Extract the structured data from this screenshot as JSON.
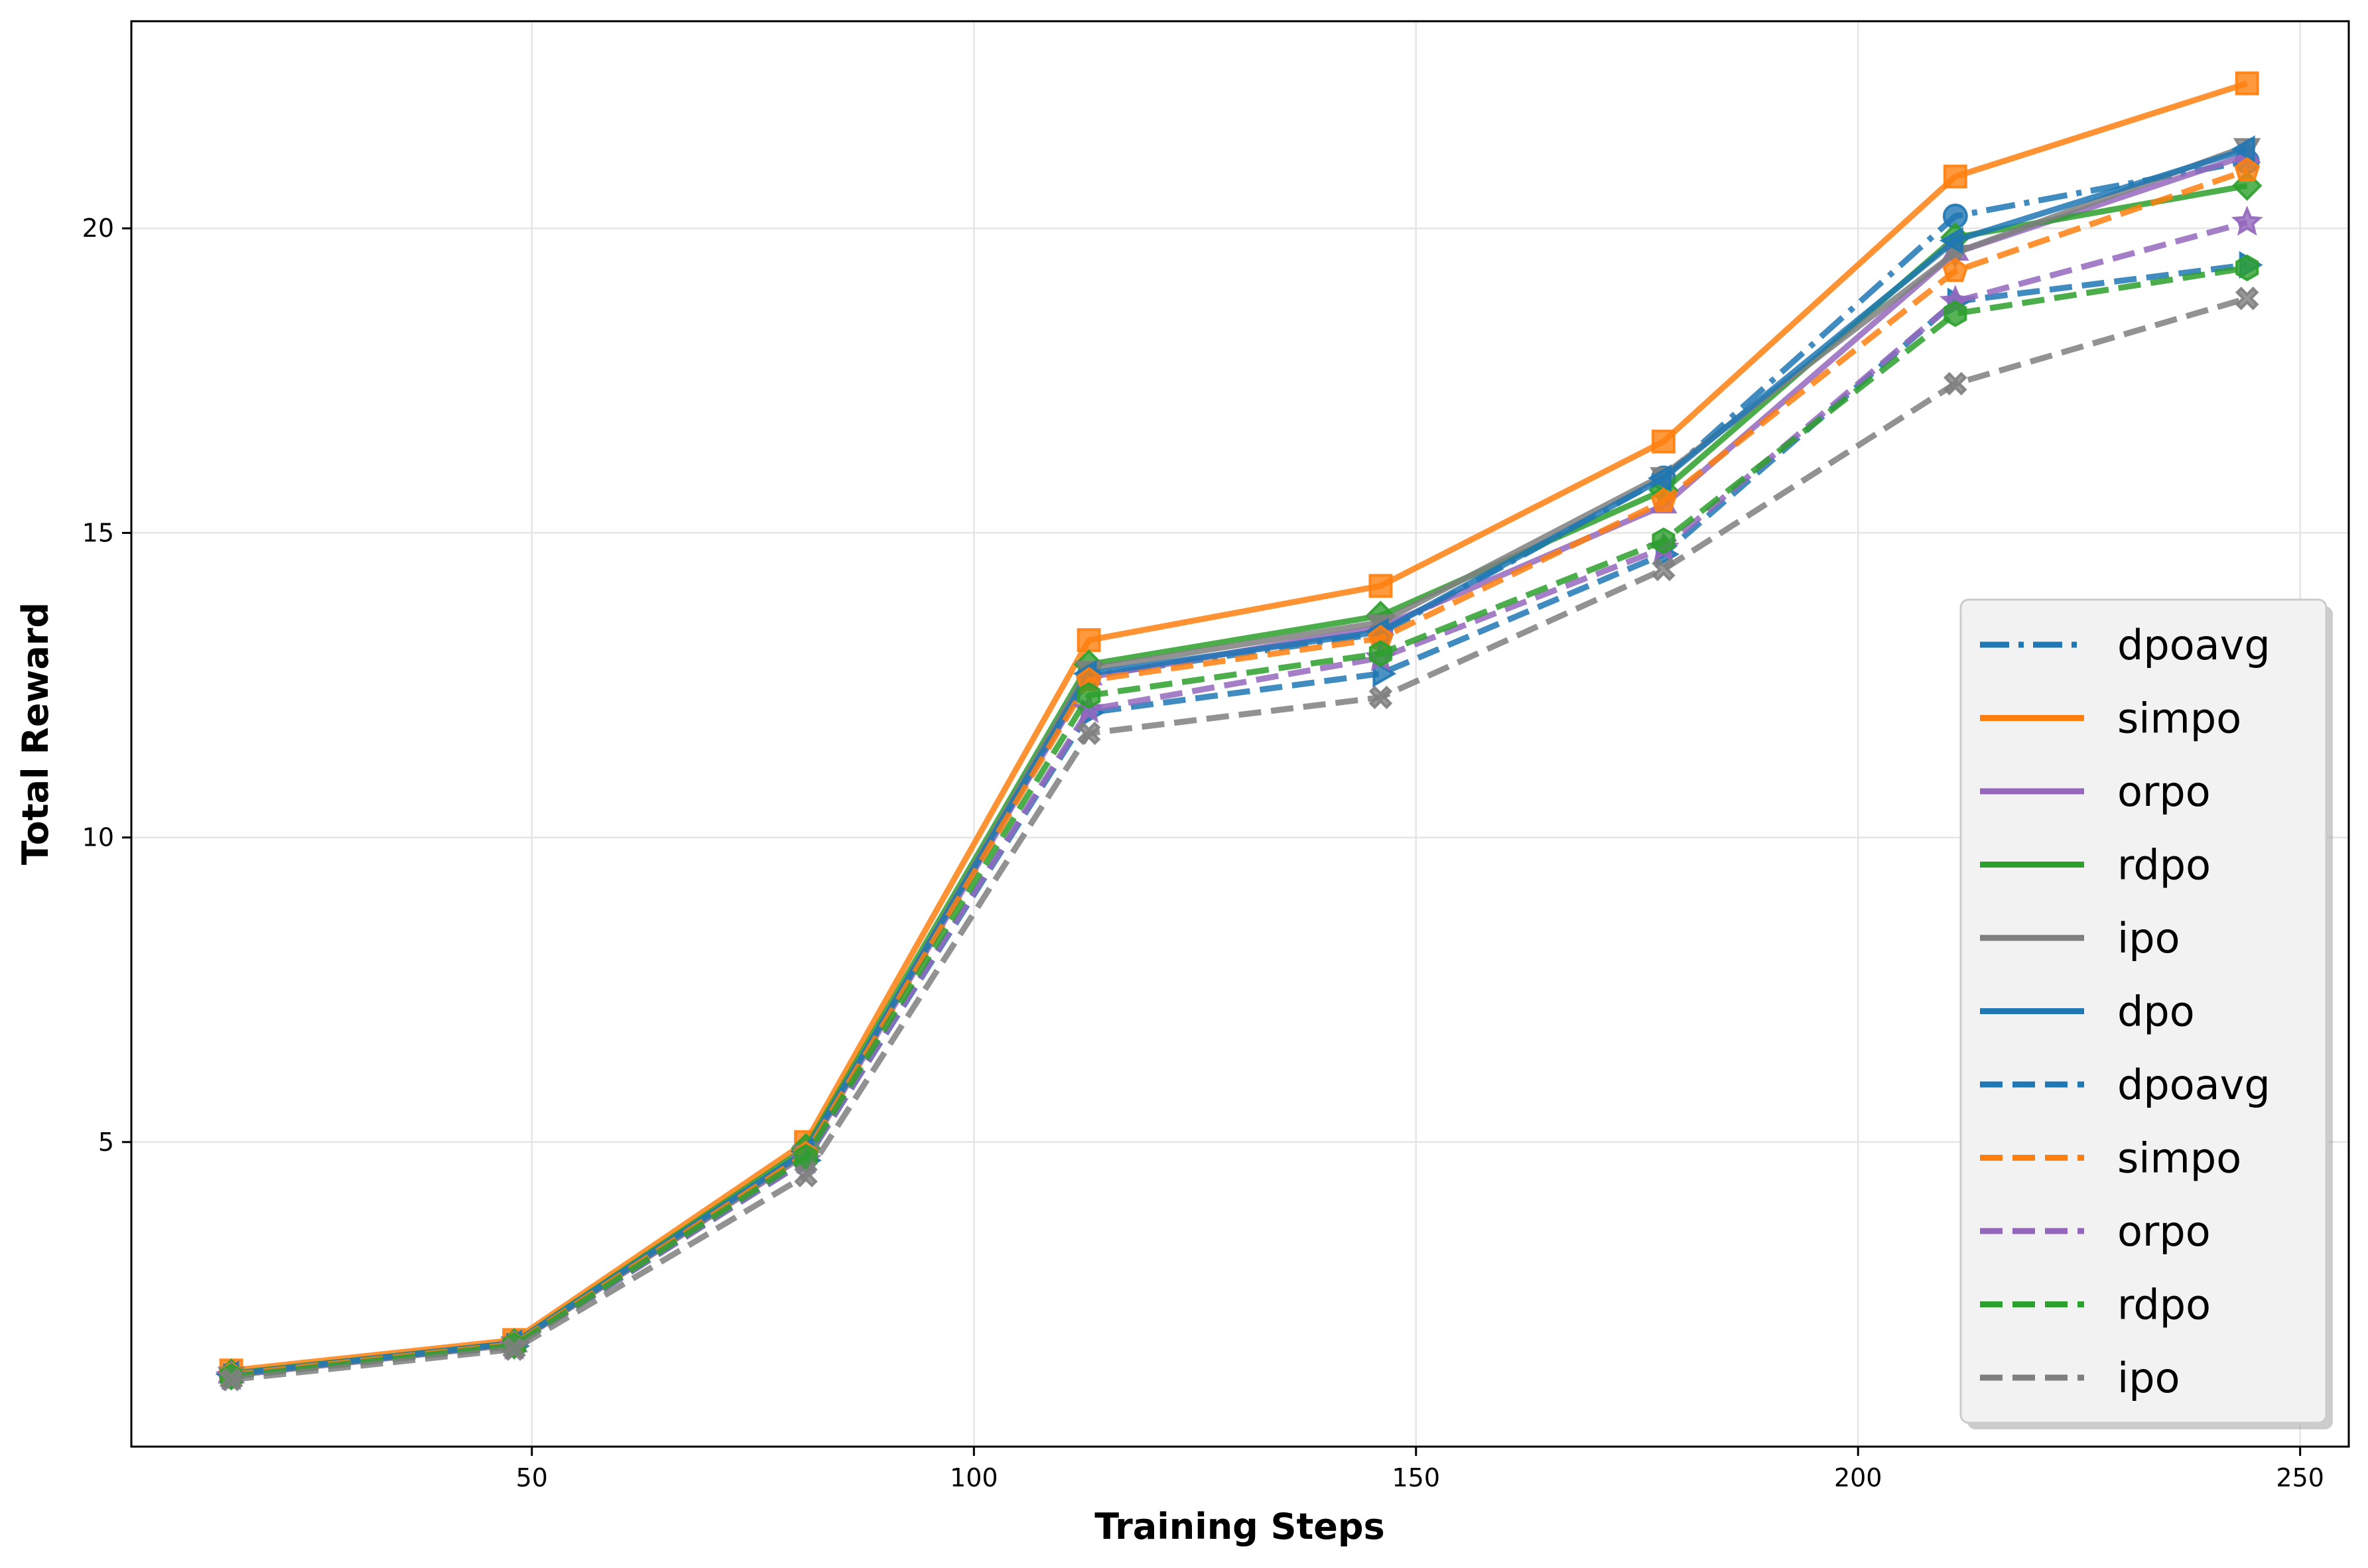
{
  "chart_data": {
    "type": "line",
    "title": "",
    "xlabel": "Training Steps",
    "ylabel": "Total Reward",
    "xlim": [
      4.7,
      255.5
    ],
    "ylim": [
      0,
      23.4
    ],
    "xticks": [
      50,
      100,
      150,
      200,
      250
    ],
    "yticks": [
      5,
      10,
      15,
      20
    ],
    "grid": true,
    "legend_position": "bottom-right",
    "x": [
      16,
      48,
      81,
      113,
      146,
      178,
      211,
      244
    ],
    "series": [
      {
        "name": "dpoavg",
        "color": "#1f77b4",
        "style": "dashdot",
        "marker": "circle",
        "values": [
          1.18,
          1.68,
          4.85,
          12.65,
          13.35,
          15.9,
          20.2,
          21.1
        ]
      },
      {
        "name": "simpo",
        "color": "#ff7f0e",
        "style": "solid",
        "marker": "square",
        "values": [
          1.25,
          1.75,
          5.0,
          13.24,
          14.13,
          16.5,
          20.85,
          22.38
        ]
      },
      {
        "name": "orpo",
        "color": "#9467bd",
        "style": "solid",
        "marker": "triangle-up",
        "values": [
          1.17,
          1.68,
          4.8,
          12.63,
          13.45,
          15.45,
          19.6,
          21.2
        ]
      },
      {
        "name": "rdpo",
        "color": "#2ca02c",
        "style": "solid",
        "marker": "diamond",
        "values": [
          1.2,
          1.7,
          4.9,
          12.84,
          13.64,
          15.7,
          19.85,
          20.7
        ]
      },
      {
        "name": "ipo",
        "color": "#7f7f7f",
        "style": "solid",
        "marker": "triangle-down",
        "values": [
          1.18,
          1.68,
          4.82,
          12.77,
          13.53,
          15.95,
          19.6,
          21.35
        ]
      },
      {
        "name": "dpo",
        "color": "#1f77b4",
        "style": "solid",
        "marker": "triangle-left",
        "values": [
          1.19,
          1.7,
          4.85,
          12.69,
          13.38,
          15.9,
          19.8,
          21.3
        ]
      },
      {
        "name": "dpoavg",
        "color": "#1f77b4",
        "style": "dashed",
        "marker": "triangle-right",
        "values": [
          1.15,
          1.65,
          4.7,
          12.05,
          12.69,
          14.65,
          18.8,
          19.4
        ]
      },
      {
        "name": "simpo",
        "color": "#ff7f0e",
        "style": "dashed",
        "marker": "pentagon",
        "values": [
          1.18,
          1.68,
          4.8,
          12.58,
          13.27,
          15.52,
          19.3,
          20.95
        ]
      },
      {
        "name": "orpo",
        "color": "#9467bd",
        "style": "dashed",
        "marker": "star",
        "values": [
          1.15,
          1.65,
          4.7,
          12.1,
          12.95,
          14.75,
          18.8,
          20.1
        ]
      },
      {
        "name": "rdpo",
        "color": "#2ca02c",
        "style": "dashed",
        "marker": "hexagon",
        "values": [
          1.15,
          1.66,
          4.75,
          12.33,
          13.02,
          14.87,
          18.6,
          19.35
        ]
      },
      {
        "name": "ipo",
        "color": "#7f7f7f",
        "style": "dashed",
        "marker": "x",
        "values": [
          1.1,
          1.6,
          4.45,
          11.71,
          12.3,
          14.4,
          17.45,
          18.85
        ]
      }
    ]
  }
}
